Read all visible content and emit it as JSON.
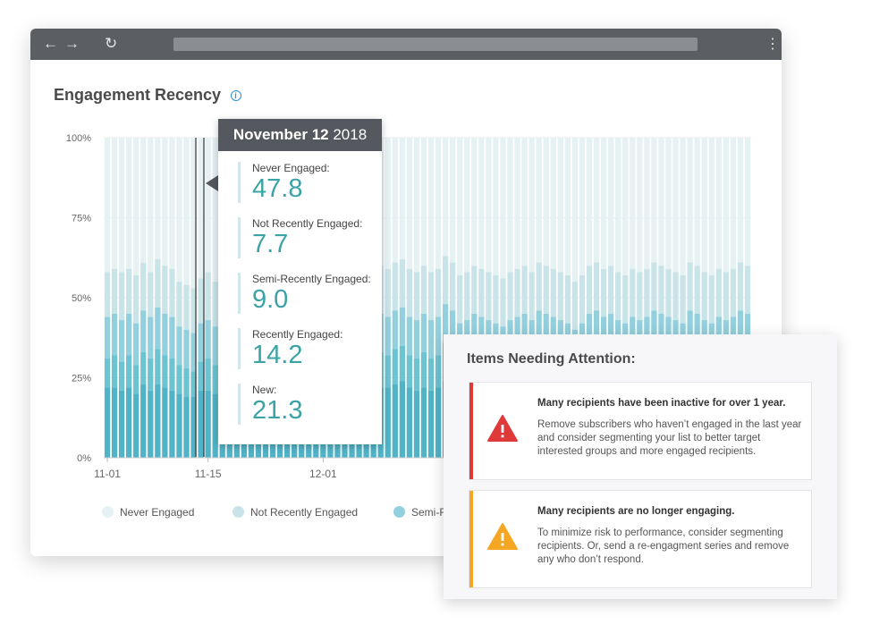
{
  "page": {
    "title": "Engagement Recency"
  },
  "chart_data": {
    "type": "bar",
    "stacked": true,
    "title": "Engagement Recency",
    "xlabel": "",
    "ylabel": "",
    "ylim": [
      0,
      100
    ],
    "y_ticks": [
      "100%",
      "75%",
      "50%",
      "25%",
      "0%"
    ],
    "x_ticks": [
      "11-01",
      "11-15",
      "12-01"
    ],
    "grid": true,
    "legend_placement": "bottom",
    "series": [
      {
        "name": "Never Engaged",
        "color": "#e6f1f3"
      },
      {
        "name": "Not Recently Engaged",
        "color": "#c9e4e9"
      },
      {
        "name": "Semi-Recently Engaged",
        "color": "#93d0dd"
      },
      {
        "name": "Recently Engaged",
        "color": "#6cc3d1"
      },
      {
        "name": "New",
        "color": "#50b3c7"
      }
    ],
    "recent_totals": [
      58,
      59,
      58,
      59,
      57,
      61,
      58,
      62,
      60,
      59,
      55,
      54,
      53,
      56,
      58,
      55,
      56,
      57,
      59,
      58,
      57,
      59,
      60,
      56,
      58,
      61,
      60,
      59,
      62,
      61,
      60,
      58,
      61,
      60,
      57,
      59,
      58,
      62,
      60,
      59,
      61,
      62,
      59,
      58,
      60,
      58,
      59,
      63,
      61,
      57,
      58,
      60,
      59,
      58,
      57,
      56,
      58,
      59,
      60,
      58,
      61,
      60,
      59,
      58,
      57,
      55,
      57,
      60,
      61,
      59,
      60,
      58,
      57,
      59,
      58,
      59,
      61,
      60,
      59,
      58,
      57,
      61,
      60,
      58,
      57,
      59,
      58,
      59,
      61,
      60
    ],
    "semi_tops": [
      44,
      45,
      43,
      45,
      42,
      46,
      44,
      47,
      45,
      44,
      41,
      40,
      39,
      42,
      43,
      41,
      42,
      43,
      44,
      43,
      42,
      44,
      45,
      41,
      43,
      46,
      45,
      44,
      47,
      46,
      45,
      43,
      46,
      45,
      42,
      44,
      43,
      47,
      45,
      44,
      46,
      47,
      44,
      43,
      45,
      43,
      44,
      48,
      46,
      42,
      43,
      45,
      44,
      43,
      42,
      41,
      43,
      44,
      45,
      43,
      46,
      45,
      44,
      43,
      42,
      40,
      42,
      45,
      46,
      44,
      45,
      43,
      42,
      44,
      43,
      44,
      46,
      45,
      44,
      43,
      42,
      46,
      45,
      43,
      42,
      44,
      43,
      44,
      46,
      45
    ],
    "recent_tops": [
      31,
      32,
      30,
      32,
      29,
      33,
      31,
      34,
      32,
      31,
      29,
      28,
      27,
      30,
      31,
      29,
      30,
      31,
      32,
      31,
      30,
      32,
      33,
      29,
      31,
      34,
      33,
      32,
      35,
      34,
      33,
      31,
      34,
      33,
      30,
      32,
      31,
      35,
      33,
      32,
      34,
      35,
      32,
      31,
      33,
      31,
      32,
      36,
      34,
      30,
      31,
      33,
      32,
      31,
      30,
      29,
      31,
      32,
      33,
      31,
      34,
      33,
      32,
      31,
      30,
      28,
      30,
      33,
      34,
      32,
      33,
      31,
      30,
      32,
      31,
      32,
      34,
      33,
      32,
      31,
      30,
      34,
      33,
      31,
      30,
      32,
      31,
      32,
      34,
      33
    ],
    "new_tops": [
      22,
      22,
      21,
      22,
      20,
      23,
      21,
      23,
      22,
      21,
      20,
      19,
      19,
      21,
      21,
      20,
      21,
      21,
      22,
      21,
      21,
      22,
      22,
      20,
      21,
      23,
      22,
      22,
      24,
      23,
      22,
      21,
      23,
      22,
      21,
      22,
      21,
      24,
      22,
      22,
      23,
      24,
      22,
      21,
      22,
      21,
      22,
      24,
      23,
      21,
      21,
      22,
      22,
      21,
      21,
      20,
      21,
      22,
      22,
      21,
      23,
      22,
      22,
      21,
      21,
      19,
      21,
      22,
      23,
      22,
      22,
      21,
      21,
      22,
      21,
      22,
      23,
      22,
      22,
      21,
      21,
      23,
      22,
      21,
      21,
      22,
      21,
      22,
      23,
      22
    ]
  },
  "tooltip": {
    "date_bold": "November 12",
    "date_year": "2018",
    "items": [
      {
        "label": "Never Engaged:",
        "value": "47.8"
      },
      {
        "label": "Not Recently Engaged:",
        "value": "7.7"
      },
      {
        "label": "Semi-Recently Engaged:",
        "value": "9.0"
      },
      {
        "label": "Recently Engaged:",
        "value": "14.2"
      },
      {
        "label": "New:",
        "value": "21.3"
      }
    ]
  },
  "legend": {
    "items": [
      "Never Engaged",
      "Not Recently Engaged",
      "Semi-Recently Engaged"
    ]
  },
  "attention": {
    "title": "Items Needing Attention:",
    "cards": [
      {
        "title": "Many recipients have been inactive for over 1 year.",
        "body": "Remove subscribers who haven’t engaged in the last year and consider segmenting your list to better target interested groups and more engaged recipients.",
        "severity": "error",
        "color": "#e0393a"
      },
      {
        "title": "Many recipients are no longer engaging.",
        "body": "To minimize risk to performance, consider segmenting recipients. Or, send a re-engagment series and remove any who don’t respond.",
        "severity": "warning",
        "color": "#f5a623"
      }
    ]
  },
  "icons": {
    "back": "arrow-left-icon",
    "forward": "arrow-right-icon",
    "reload": "reload-icon",
    "menu": "kebab-menu-icon",
    "info": "info-icon",
    "warning": "warning-triangle-icon"
  }
}
